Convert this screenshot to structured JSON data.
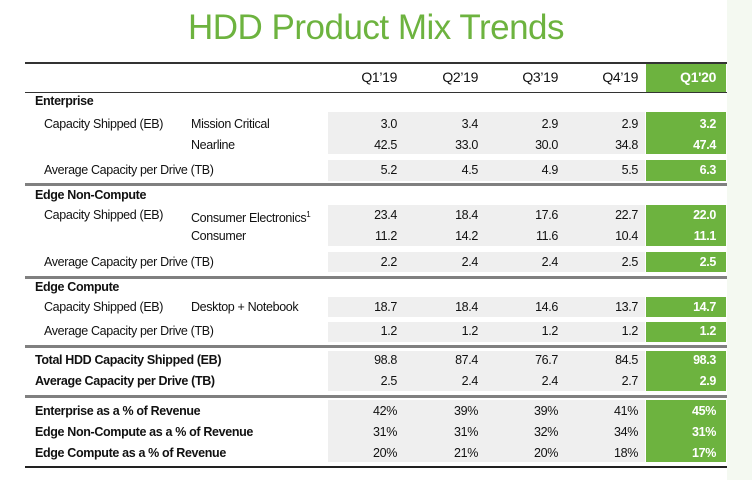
{
  "title": "HDD Product Mix Trends",
  "columns": [
    "Q1’19",
    "Q2’19",
    "Q3’19",
    "Q4’19",
    "Q1'20"
  ],
  "sections": [
    {
      "label": "Enterprise",
      "rows": [
        {
          "label": "Capacity Shipped (EB)",
          "sub": "Mission Critical",
          "values": [
            "3.0",
            "3.4",
            "2.9",
            "2.9",
            "3.2"
          ]
        },
        {
          "label": "",
          "sub": "Nearline",
          "values": [
            "42.5",
            "33.0",
            "30.0",
            "34.8",
            "47.4"
          ]
        },
        {
          "label": "Average Capacity per Drive (TB)",
          "sub": "",
          "values": [
            "5.2",
            "4.5",
            "4.9",
            "5.5",
            "6.3"
          ]
        }
      ]
    },
    {
      "label": "Edge Non-Compute",
      "rows": [
        {
          "label": "Capacity Shipped (EB)",
          "sub": "Consumer Electronics",
          "sup": "1",
          "values": [
            "23.4",
            "18.4",
            "17.6",
            "22.7",
            "22.0"
          ]
        },
        {
          "label": "",
          "sub": "Consumer",
          "values": [
            "11.2",
            "14.2",
            "11.6",
            "10.4",
            "11.1"
          ]
        },
        {
          "label": "Average Capacity per Drive (TB)",
          "sub": "",
          "values": [
            "2.2",
            "2.4",
            "2.4",
            "2.5",
            "2.5"
          ]
        }
      ]
    },
    {
      "label": "Edge Compute",
      "rows": [
        {
          "label": "Capacity Shipped (EB)",
          "sub": "Desktop + Notebook",
          "values": [
            "18.7",
            "18.4",
            "14.6",
            "13.7",
            "14.7"
          ]
        },
        {
          "label": "Average Capacity per Drive (TB)",
          "sub": "",
          "values": [
            "1.2",
            "1.2",
            "1.2",
            "1.2",
            "1.2"
          ]
        }
      ]
    },
    {
      "label": "",
      "rows": [
        {
          "label": "Total  HDD Capacity Shipped (EB)",
          "bold": true,
          "values": [
            "98.8",
            "87.4",
            "76.7",
            "84.5",
            "98.3"
          ]
        },
        {
          "label": "Average Capacity per Drive (TB)",
          "bold": true,
          "values": [
            "2.5",
            "2.4",
            "2.4",
            "2.7",
            "2.9"
          ]
        }
      ]
    },
    {
      "label": "",
      "rows": [
        {
          "label": "Enterprise as a % of Revenue",
          "bold": true,
          "values": [
            "42%",
            "39%",
            "39%",
            "41%",
            "45%"
          ]
        },
        {
          "label": "Edge Non-Compute as a % of Revenue",
          "bold": true,
          "values": [
            "31%",
            "31%",
            "32%",
            "34%",
            "31%"
          ]
        },
        {
          "label": "Edge Compute as a % of Revenue",
          "bold": true,
          "values": [
            "20%",
            "21%",
            "20%",
            "18%",
            "17%"
          ]
        }
      ]
    }
  ],
  "colors": {
    "accent": "#6db33f",
    "band": "#efefef"
  }
}
